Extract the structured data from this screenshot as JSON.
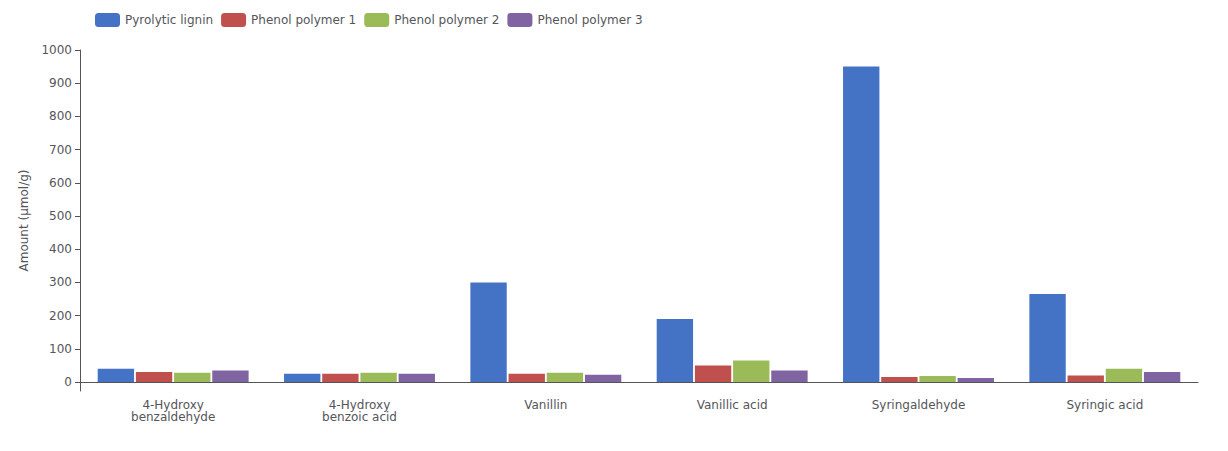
{
  "chart_data": {
    "type": "bar",
    "categories": [
      "4-Hydroxy\nbenzaldehyde",
      "4-Hydroxy\nbenzoic acid",
      "Vanillin",
      "Vanillic acid",
      "Syringaldehyde",
      "Syringic acid"
    ],
    "series": [
      {
        "name": "Pyrolytic lignin",
        "color": "#4472C4",
        "values": [
          40,
          25,
          300,
          190,
          950,
          265
        ]
      },
      {
        "name": "Phenol polymer 1",
        "color": "#C0504D",
        "values": [
          30,
          25,
          25,
          50,
          15,
          20
        ]
      },
      {
        "name": "Phenol polymer 2",
        "color": "#9BBB59",
        "values": [
          28,
          28,
          28,
          65,
          18,
          40
        ]
      },
      {
        "name": "Phenol polymer 3",
        "color": "#8064A2",
        "values": [
          35,
          25,
          22,
          35,
          12,
          30
        ]
      }
    ],
    "ylabel": "Amount (μmol/g)",
    "ylim": [
      -27,
      1000
    ],
    "yticks": [
      0,
      100,
      200,
      300,
      400,
      500,
      600,
      700,
      800,
      900,
      1000
    ],
    "grid": false,
    "legend": "upper left"
  }
}
